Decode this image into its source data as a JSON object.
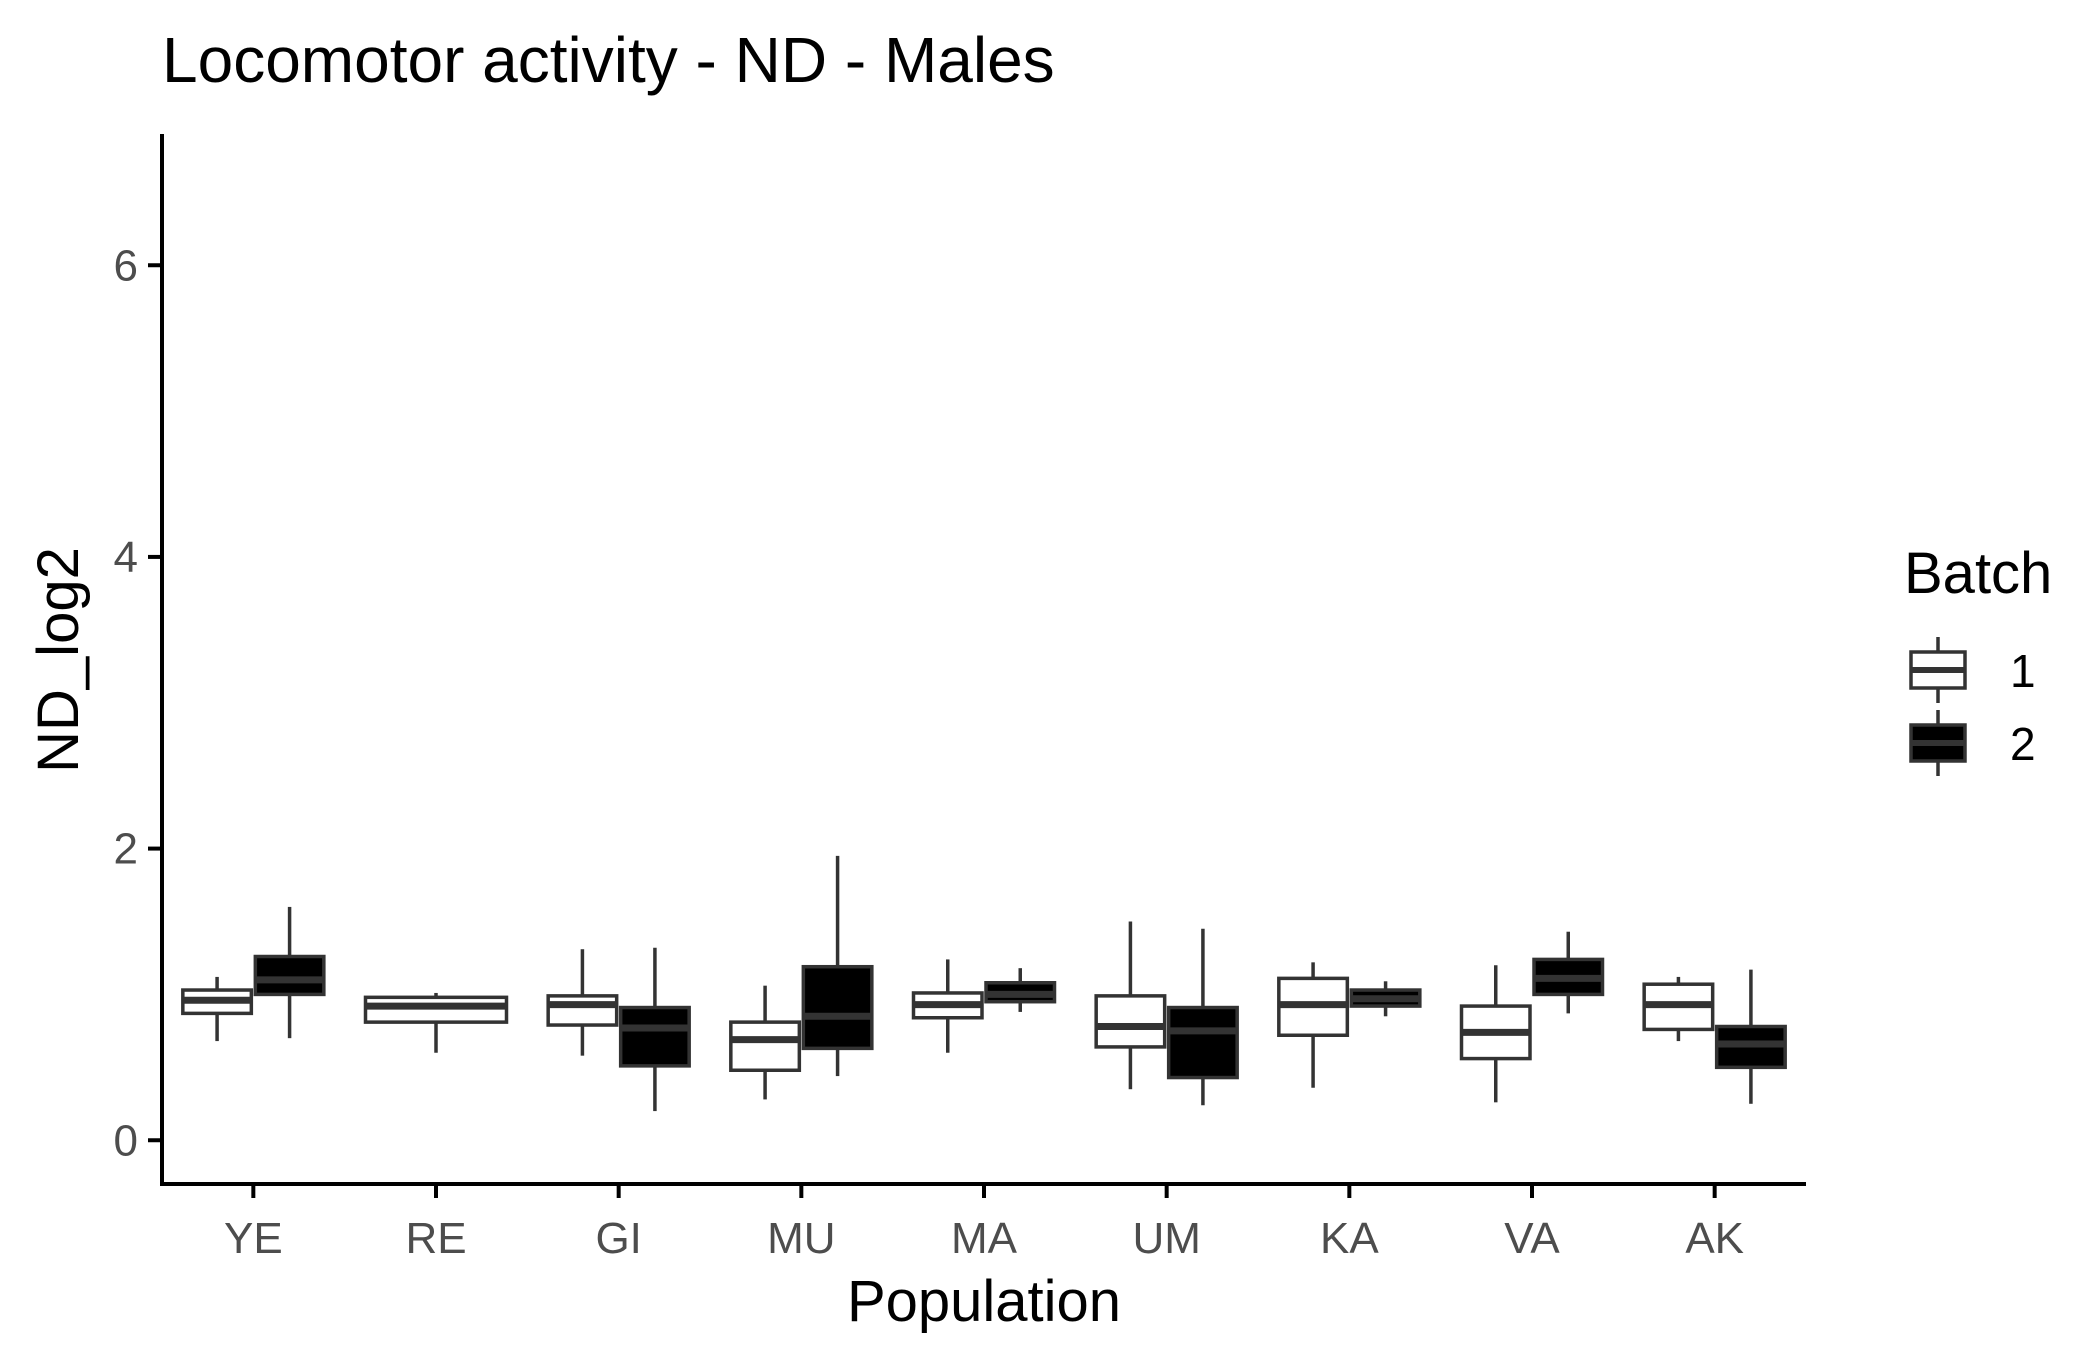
{
  "chart_data": {
    "type": "boxplot",
    "title": "Locomotor activity - ND - Males",
    "xlabel": "Population",
    "ylabel": "ND_log2",
    "ylim": [
      -0.3,
      6.9
    ],
    "yticks": [
      0,
      2,
      4,
      6
    ],
    "grid": false,
    "legend_placement": "right",
    "legend": {
      "title": "Batch",
      "entries": [
        {
          "label": "1",
          "fill": "#ffffff"
        },
        {
          "label": "2",
          "fill": "#000000"
        }
      ]
    },
    "categories": [
      "YE",
      "RE",
      "GI",
      "MU",
      "MA",
      "UM",
      "KA",
      "VA",
      "AK"
    ],
    "series": [
      {
        "name": "1",
        "fill": "#ffffff",
        "boxes": [
          {
            "min": 0.68,
            "q1": 0.87,
            "median": 0.96,
            "q3": 1.03,
            "max": 1.12
          },
          {
            "min": 0.6,
            "q1": 0.81,
            "median": 0.92,
            "q3": 0.98,
            "max": 1.01
          },
          {
            "min": 0.58,
            "q1": 0.79,
            "median": 0.93,
            "q3": 0.99,
            "max": 1.31
          },
          {
            "min": 0.28,
            "q1": 0.48,
            "median": 0.69,
            "q3": 0.81,
            "max": 1.06
          },
          {
            "min": 0.6,
            "q1": 0.84,
            "median": 0.93,
            "q3": 1.01,
            "max": 1.24
          },
          {
            "min": 0.35,
            "q1": 0.64,
            "median": 0.78,
            "q3": 0.99,
            "max": 1.5
          },
          {
            "min": 0.36,
            "q1": 0.72,
            "median": 0.93,
            "q3": 1.11,
            "max": 1.22
          },
          {
            "min": 0.26,
            "q1": 0.56,
            "median": 0.74,
            "q3": 0.92,
            "max": 1.2
          },
          {
            "min": 0.68,
            "q1": 0.76,
            "median": 0.93,
            "q3": 1.07,
            "max": 1.12
          }
        ]
      },
      {
        "name": "2",
        "fill": "#000000",
        "boxes": [
          {
            "min": 0.7,
            "q1": 1.0,
            "median": 1.1,
            "q3": 1.26,
            "max": 1.6
          },
          null,
          {
            "min": 0.2,
            "q1": 0.51,
            "median": 0.77,
            "q3": 0.91,
            "max": 1.32
          },
          {
            "min": 0.44,
            "q1": 0.63,
            "median": 0.85,
            "q3": 1.19,
            "max": 1.95
          },
          {
            "min": 0.88,
            "q1": 0.95,
            "median": 1.0,
            "q3": 1.08,
            "max": 1.18
          },
          {
            "min": 0.24,
            "q1": 0.43,
            "median": 0.75,
            "q3": 0.91,
            "max": 1.45
          },
          {
            "min": 0.85,
            "q1": 0.92,
            "median": 0.97,
            "q3": 1.03,
            "max": 1.09
          },
          {
            "min": 0.87,
            "q1": 1.0,
            "median": 1.11,
            "q3": 1.24,
            "max": 1.43
          },
          {
            "min": 0.25,
            "q1": 0.5,
            "median": 0.66,
            "q3": 0.78,
            "max": 1.17
          }
        ]
      }
    ]
  }
}
